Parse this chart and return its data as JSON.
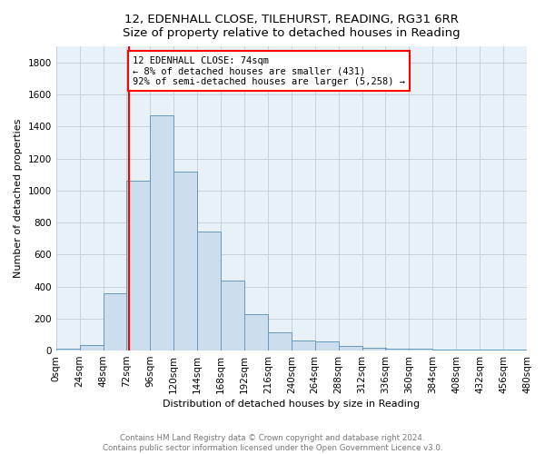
{
  "title_line1": "12, EDENHALL CLOSE, TILEHURST, READING, RG31 6RR",
  "title_line2": "Size of property relative to detached houses in Reading",
  "xlabel": "Distribution of detached houses by size in Reading",
  "ylabel": "Number of detached properties",
  "bar_color": "#ccdded",
  "bar_edge_color": "#6699bb",
  "annotation_text": "12 EDENHALL CLOSE: 74sqm\n← 8% of detached houses are smaller (431)\n92% of semi-detached houses are larger (5,258) →",
  "vline_color": "red",
  "vline_x": 74,
  "footer_line1": "Contains HM Land Registry data © Crown copyright and database right 2024.",
  "footer_line2": "Contains public sector information licensed under the Open Government Licence v3.0.",
  "bin_edges": [
    0,
    24,
    48,
    72,
    96,
    120,
    144,
    168,
    192,
    216,
    240,
    264,
    288,
    312,
    336,
    360,
    384,
    408,
    432,
    456,
    480
  ],
  "bar_heights": [
    10,
    35,
    355,
    1060,
    1470,
    1120,
    745,
    435,
    225,
    115,
    60,
    55,
    30,
    18,
    12,
    10,
    8,
    6,
    5,
    4
  ],
  "ylim": [
    0,
    1900
  ],
  "xlim": [
    0,
    480
  ],
  "yticks": [
    0,
    200,
    400,
    600,
    800,
    1000,
    1200,
    1400,
    1600,
    1800
  ],
  "xtick_labels": [
    "0sqm",
    "24sqm",
    "48sqm",
    "72sqm",
    "96sqm",
    "120sqm",
    "144sqm",
    "168sqm",
    "192sqm",
    "216sqm",
    "240sqm",
    "264sqm",
    "288sqm",
    "312sqm",
    "336sqm",
    "360sqm",
    "384sqm",
    "408sqm",
    "432sqm",
    "456sqm",
    "480sqm"
  ],
  "bg_color": "#e8f0f8",
  "grid_color": "#c0ccd8",
  "title_fontsize": 9.5,
  "ylabel_fontsize": 8,
  "xlabel_fontsize": 8,
  "tick_fontsize": 7.5
}
